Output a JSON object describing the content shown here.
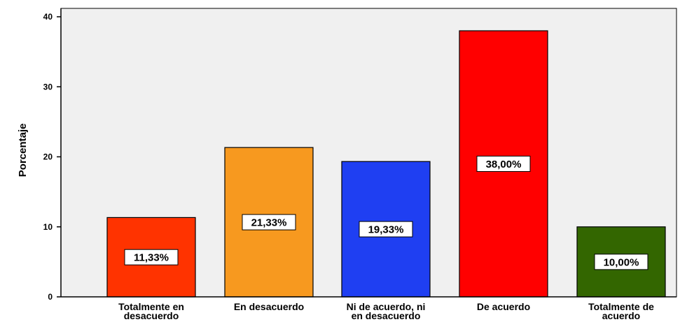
{
  "chart_data": {
    "type": "bar",
    "title": "",
    "xlabel": "",
    "ylabel": "Porcentaje",
    "ylim": [
      0,
      40
    ],
    "yticks": [
      0,
      10,
      20,
      30,
      40
    ],
    "grid": false,
    "categories": [
      [
        "Totalmente en",
        "desacuerdo"
      ],
      [
        "En desacuerdo"
      ],
      [
        "Ni de acuerdo, ni",
        "en desacuerdo"
      ],
      [
        "De acuerdo"
      ],
      [
        "Totalmente de",
        "acuerdo"
      ]
    ],
    "values": [
      11.33,
      21.33,
      19.33,
      38.0,
      10.0
    ],
    "data_labels": [
      "11,33%",
      "21,33%",
      "19,33%",
      "38,00%",
      "10,00%"
    ],
    "colors": [
      "#ff3300",
      "#f7991f",
      "#1f3ff2",
      "#ff0000",
      "#336600"
    ],
    "plot_background": "#f0f0f0"
  }
}
